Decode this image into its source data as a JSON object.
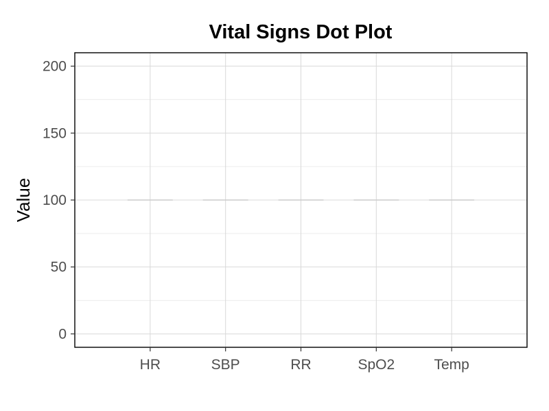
{
  "chart_data": {
    "type": "scatter",
    "title": "Vital Signs Dot Plot",
    "xlabel": "",
    "ylabel": "Value",
    "categories": [
      "HR",
      "SBP",
      "RR",
      "SpO2",
      "Temp"
    ],
    "reference_values": [
      100,
      100,
      100,
      100,
      100
    ],
    "ylim": [
      -10,
      210
    ],
    "yticks": [
      0,
      50,
      100,
      150,
      200
    ],
    "grid": true,
    "legend": "none",
    "colors": {
      "panel_border": "#000000",
      "major_grid": "#d9d9d9",
      "minor_grid": "#ececec",
      "reference_segment": "#cccccc",
      "tick_label": "#4d4d4d"
    }
  }
}
